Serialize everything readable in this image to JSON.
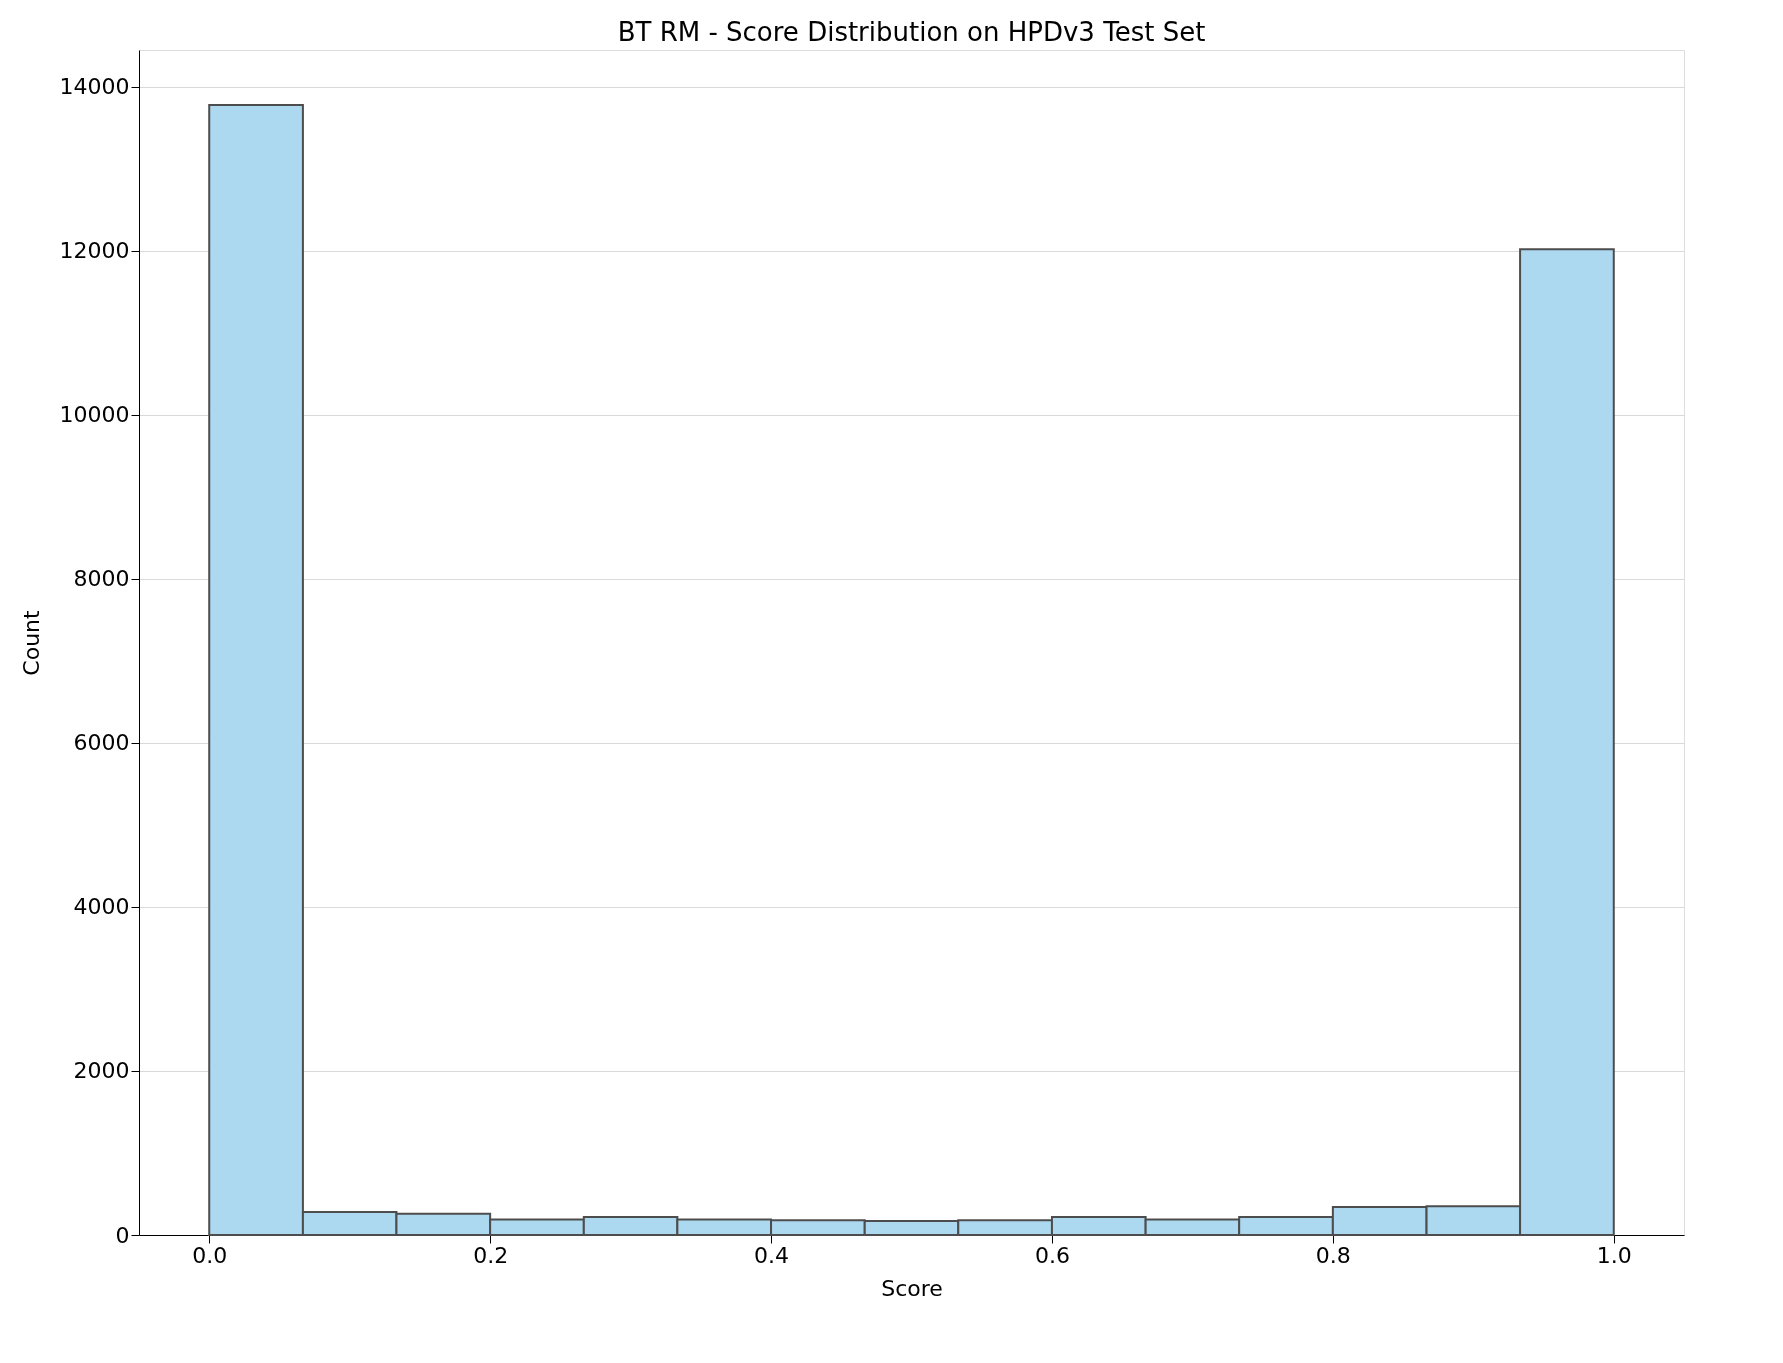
{
  "chart_data": {
    "type": "histogram",
    "title": "BT RM - Score Distribution on HPDv3 Test Set",
    "xlabel": "Score",
    "ylabel": "Count",
    "bins": [
      0,
      0.0667,
      0.1333,
      0.2,
      0.2667,
      0.3333,
      0.4,
      0.4667,
      0.5333,
      0.6,
      0.6667,
      0.7333,
      0.8,
      0.8667,
      0.9333,
      1.0
    ],
    "values": [
      13780,
      280,
      260,
      190,
      220,
      190,
      180,
      170,
      180,
      220,
      190,
      220,
      340,
      350,
      12020
    ],
    "color": "#add9f0",
    "xlim": [
      -0.05,
      1.05
    ],
    "xticks": [
      {
        "value": 0,
        "label": "0.0"
      },
      0.2,
      0.4,
      0.6,
      0.8,
      {
        "value": 1,
        "label": "1.0"
      }
    ],
    "ylim": [
      0,
      14450
    ],
    "yticks": [
      0,
      2000,
      4000,
      6000,
      8000,
      10000,
      12000,
      14000
    ],
    "grid": "y"
  }
}
